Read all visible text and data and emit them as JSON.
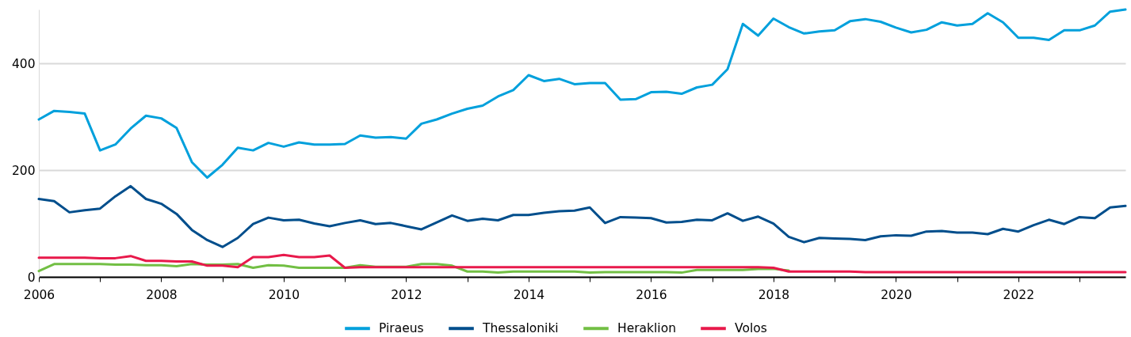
{
  "chart_data": {
    "type": "line",
    "x": [
      2006,
      2006.25,
      2006.5,
      2006.75,
      2007,
      2007.25,
      2007.5,
      2007.75,
      2008,
      2008.25,
      2008.5,
      2008.75,
      2009,
      2009.25,
      2009.5,
      2009.75,
      2010,
      2010.25,
      2010.5,
      2010.75,
      2011,
      2011.25,
      2011.5,
      2011.75,
      2012,
      2012.25,
      2012.5,
      2012.75,
      2013,
      2013.25,
      2013.5,
      2013.75,
      2014,
      2014.25,
      2014.5,
      2014.75,
      2015,
      2015.25,
      2015.5,
      2015.75,
      2016,
      2016.25,
      2016.5,
      2016.75,
      2017,
      2017.25,
      2017.5,
      2017.75,
      2018,
      2018.25,
      2018.5,
      2018.75,
      2019,
      2019.25,
      2019.5,
      2019.75,
      2020,
      2020.25,
      2020.5,
      2020.75,
      2021,
      2021.25,
      2021.5,
      2021.75,
      2022,
      2022.25,
      2022.5,
      2022.75,
      2023,
      2023.25,
      2023.5,
      2023.75
    ],
    "series": [
      {
        "name": "Piraeus",
        "color": "#00a0dc",
        "values": [
          295,
          311,
          309,
          306,
          237,
          248,
          278,
          302,
          297,
          279,
          215,
          186,
          210,
          242,
          237,
          251,
          244,
          252,
          248,
          248,
          249,
          265,
          261,
          262,
          259,
          287,
          295,
          306,
          315,
          321,
          338,
          350,
          378,
          367,
          371,
          361,
          363,
          363,
          332,
          333,
          346,
          347,
          343,
          355,
          360,
          389,
          474,
          452,
          484,
          468,
          456,
          460,
          462,
          479,
          483,
          478,
          467,
          458,
          463,
          477,
          471,
          474,
          494,
          477,
          448,
          448,
          444,
          462,
          462,
          471,
          497,
          501
        ]
      },
      {
        "name": "Thessaloniki",
        "color": "#004e8c",
        "values": [
          146,
          142,
          121,
          125,
          128,
          151,
          170,
          146,
          137,
          118,
          88,
          69,
          56,
          73,
          99,
          111,
          106,
          107,
          100,
          95,
          101,
          106,
          99,
          101,
          95,
          89,
          102,
          115,
          105,
          109,
          106,
          116,
          116,
          120,
          123,
          124,
          130,
          101,
          112,
          111,
          110,
          102,
          103,
          107,
          106,
          119,
          105,
          113,
          100,
          75,
          65,
          73,
          72,
          71,
          69,
          76,
          78,
          77,
          85,
          86,
          83,
          83,
          80,
          90,
          85,
          97,
          107,
          99,
          112,
          110,
          130,
          133
        ]
      },
      {
        "name": "Heraklion",
        "color": "#72bf44",
        "values": [
          11,
          24,
          24,
          24,
          24,
          23,
          23,
          22,
          22,
          20,
          24,
          23,
          23,
          24,
          17,
          22,
          21,
          17,
          17,
          17,
          17,
          22,
          19,
          19,
          19,
          24,
          24,
          21,
          10,
          10,
          8,
          10,
          10,
          10,
          10,
          10,
          8,
          9,
          9,
          9,
          9,
          9,
          8,
          13,
          13,
          13,
          13,
          15,
          15,
          12,
          null,
          null,
          null,
          null,
          null,
          null,
          null,
          null,
          null,
          null,
          null,
          null,
          null,
          null,
          null,
          null,
          null,
          null,
          null,
          null,
          null,
          null
        ]
      },
      {
        "name": "Volos",
        "color": "#e8194b",
        "values": [
          36,
          36,
          36,
          36,
          35,
          35,
          39,
          30,
          30,
          29,
          29,
          21,
          21,
          18,
          37,
          37,
          41,
          37,
          37,
          40,
          17,
          18,
          18,
          18,
          18,
          18,
          18,
          18,
          18,
          18,
          18,
          18,
          18,
          18,
          18,
          18,
          18,
          18,
          18,
          18,
          18,
          18,
          18,
          18,
          18,
          18,
          18,
          18,
          17,
          10,
          10,
          10,
          10,
          10,
          9,
          9,
          9,
          9,
          9,
          9,
          9,
          9,
          9,
          9,
          9,
          9,
          9,
          9,
          9,
          9,
          9,
          9
        ]
      }
    ],
    "xlim": [
      2006,
      2023.75
    ],
    "xticks": [
      2006,
      {
        "value": 2007,
        "label": null
      },
      2008,
      {
        "value": 2009,
        "label": null
      },
      2010,
      {
        "value": 2011,
        "label": null
      },
      2012,
      {
        "value": 2013,
        "label": null
      },
      2014,
      {
        "value": 2015,
        "label": null
      },
      2016,
      {
        "value": 2017,
        "label": null
      },
      2018,
      {
        "value": 2019,
        "label": null
      },
      2020,
      {
        "value": 2021,
        "label": null
      },
      2022,
      {
        "value": 2023,
        "label": null
      }
    ],
    "ylim": [
      0,
      501
    ],
    "yticks": [
      0,
      200,
      400
    ],
    "grid": "y",
    "legend": "bottom"
  }
}
